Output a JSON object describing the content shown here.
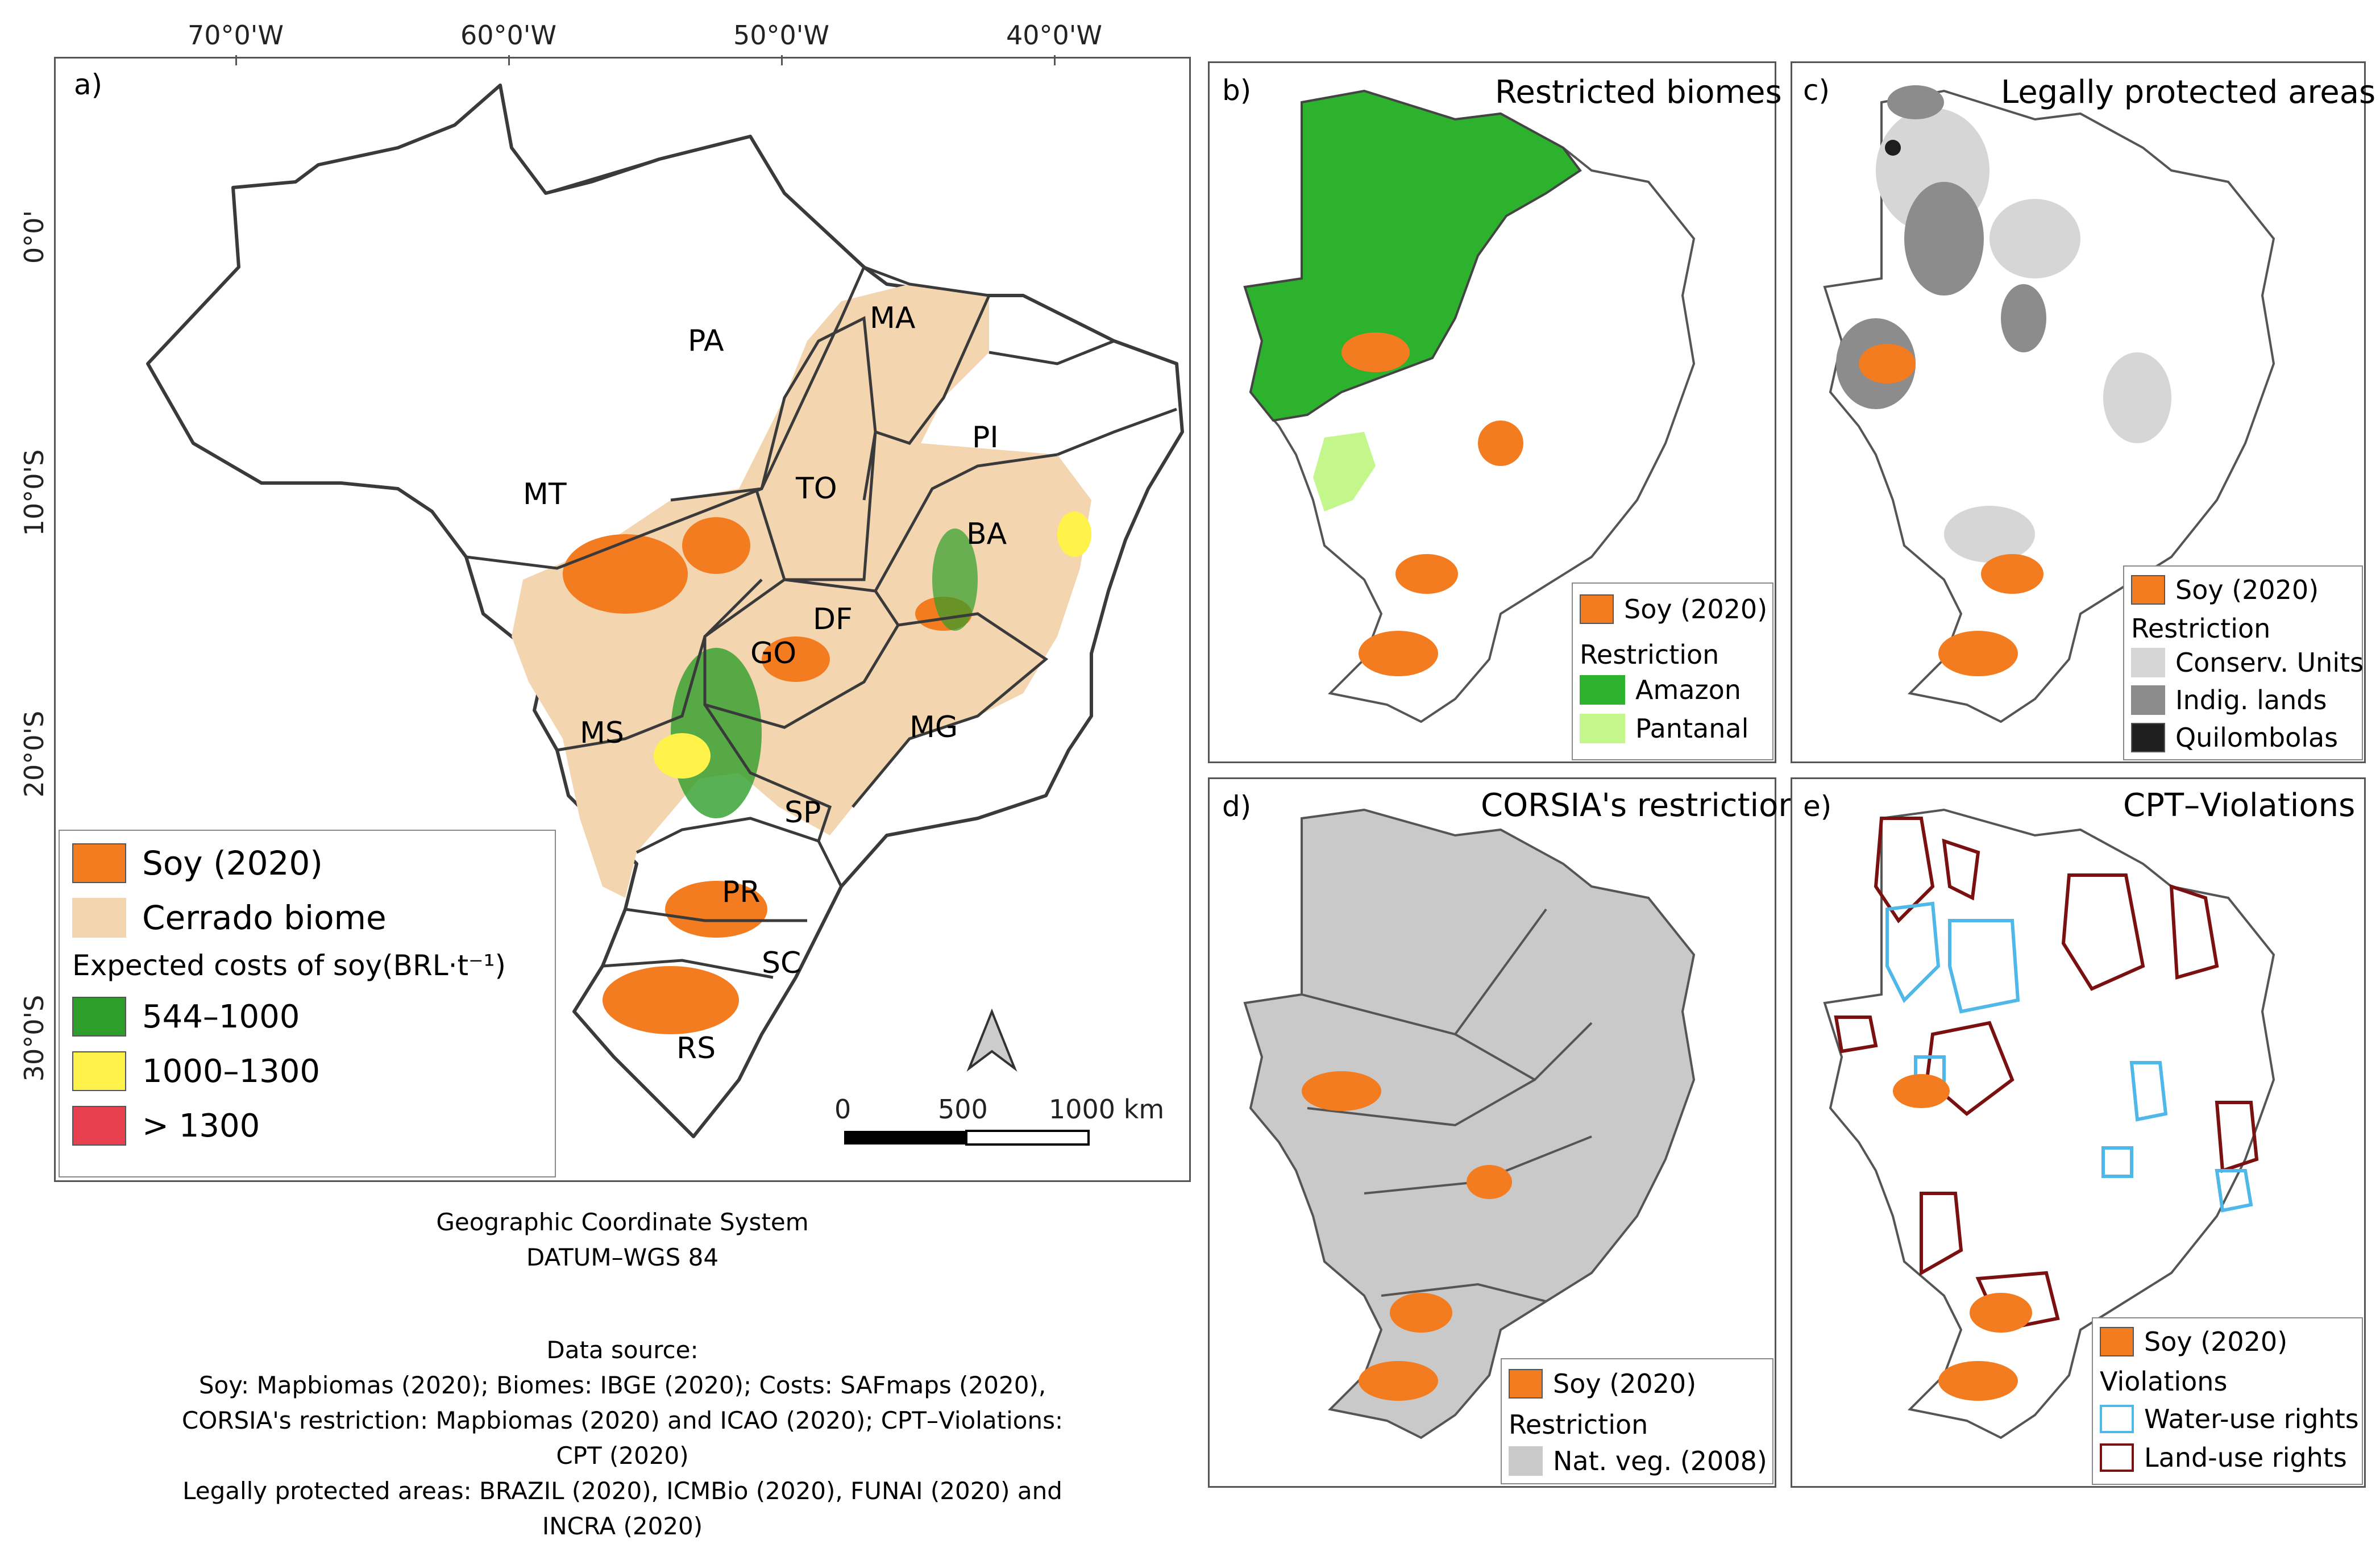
{
  "axes": {
    "lon_ticks": [
      "70°0'W",
      "60°0'W",
      "50°0'W",
      "40°0'W"
    ],
    "lat_ticks": [
      "0°0'",
      "10°0'S",
      "20°0'S",
      "30°0'S"
    ]
  },
  "panel_a": {
    "label": "a)",
    "states": [
      "PA",
      "MA",
      "PI",
      "MT",
      "TO",
      "BA",
      "DF",
      "GO",
      "MS",
      "MG",
      "SP",
      "PR",
      "SC",
      "RS"
    ],
    "legend": {
      "soy": "Soy (2020)",
      "cerrado": "Cerrado biome",
      "costs_title": "Expected costs of soy(BRL·t⁻¹)",
      "classes": [
        "544–1000",
        "1000–1300",
        "> 1300"
      ]
    },
    "scale": {
      "labels": [
        "0",
        "500",
        "1000 km"
      ]
    },
    "coordinate_system": [
      "Geographic Coordinate System",
      "DATUM–WGS 84"
    ],
    "data_source": [
      "Data source:",
      "Soy: Mapbiomas (2020); Biomes: IBGE (2020); Costs: SAFmaps (2020),",
      "CORSIA's restriction: Mapbiomas (2020) and ICAO (2020); CPT–Violations: CPT (2020)",
      "Legally protected areas: BRAZIL (2020), ICMBio (2020), FUNAI (2020) and INCRA (2020)"
    ]
  },
  "panel_b": {
    "label": "b)",
    "title": "Restricted biomes",
    "legend": {
      "soy": "Soy (2020)",
      "heading": "Restriction",
      "items": [
        "Amazon",
        "Pantanal"
      ]
    }
  },
  "panel_c": {
    "label": "c)",
    "title": "Legally protected areas",
    "legend": {
      "soy": "Soy (2020)",
      "heading": "Restriction",
      "items": [
        "Conserv. Units",
        "Indig. lands",
        "Quilombolas"
      ]
    }
  },
  "panel_d": {
    "label": "d)",
    "title": "CORSIA's restriction",
    "legend": {
      "soy": "Soy (2020)",
      "heading": "Restriction",
      "items": [
        "Nat. veg. (2008)"
      ]
    }
  },
  "panel_e": {
    "label": "e)",
    "title": "CPT–Violations",
    "legend": {
      "soy": "Soy (2020)",
      "heading": "Violations",
      "items": [
        "Water-use rights",
        "Land-use rights"
      ]
    }
  },
  "colors": {
    "soy": "#f37b20",
    "cerrado": "#f3d6b0",
    "green_cost": "#2e9e2a",
    "yellow_cost": "#fff24a",
    "red_cost": "#e8404e",
    "amazon": "#2db22d",
    "pantanal": "#c3f78c",
    "conserv": "#d6d6d6",
    "indig": "#8c8c8c",
    "quilombo": "#1e1e1e",
    "natveg": "#c9c9c9",
    "water": "#4fb8e8",
    "land": "#7a1010"
  }
}
